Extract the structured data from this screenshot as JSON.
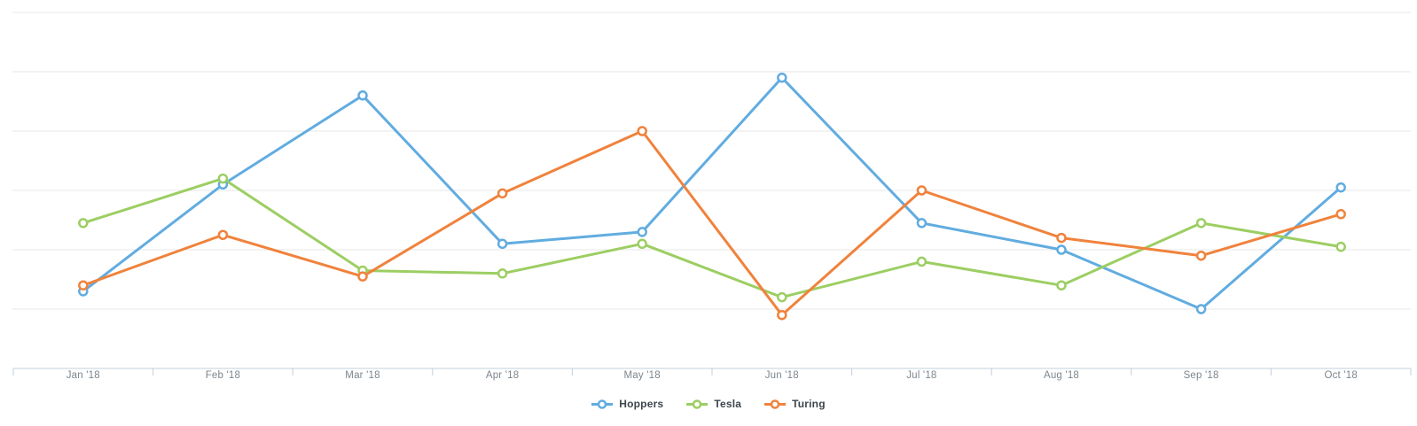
{
  "chart_data": {
    "type": "line",
    "title": "",
    "xlabel": "",
    "ylabel": "",
    "x_categories": [
      "Jan '18",
      "Feb '18",
      "Mar '18",
      "Apr '18",
      "May '18",
      "Jun '18",
      "Jul '18",
      "Aug '18",
      "Sep '18",
      "Oct '18"
    ],
    "series": [
      {
        "name": "Hoppers",
        "color": "#61ace0",
        "values": [
          13,
          31,
          46,
          21,
          23,
          49,
          24.5,
          20,
          10,
          30.5
        ]
      },
      {
        "name": "Tesla",
        "color": "#9cce62",
        "values": [
          24.5,
          32,
          16.5,
          16,
          21,
          12,
          18,
          14,
          24.5,
          20.5
        ]
      },
      {
        "name": "Turing",
        "color": "#f0823c",
        "values": [
          14,
          22.5,
          15.5,
          29.5,
          40,
          9,
          30,
          22,
          19,
          26
        ]
      }
    ],
    "ylim": [
      0,
      60
    ],
    "y_grid_step": 10,
    "y_axis_labels_visible": false,
    "grid": true,
    "legend_position": "bottom",
    "marker_style": "hollow-circle"
  },
  "colors": {
    "background": "#ffffff",
    "grid_line": "#e7e7e7",
    "axis_line": "#c2cfde",
    "tick": "#c2cfde",
    "x_label_text": "#7c868e",
    "legend_text": "#3d454d",
    "marker_fill": "#ffffff"
  }
}
